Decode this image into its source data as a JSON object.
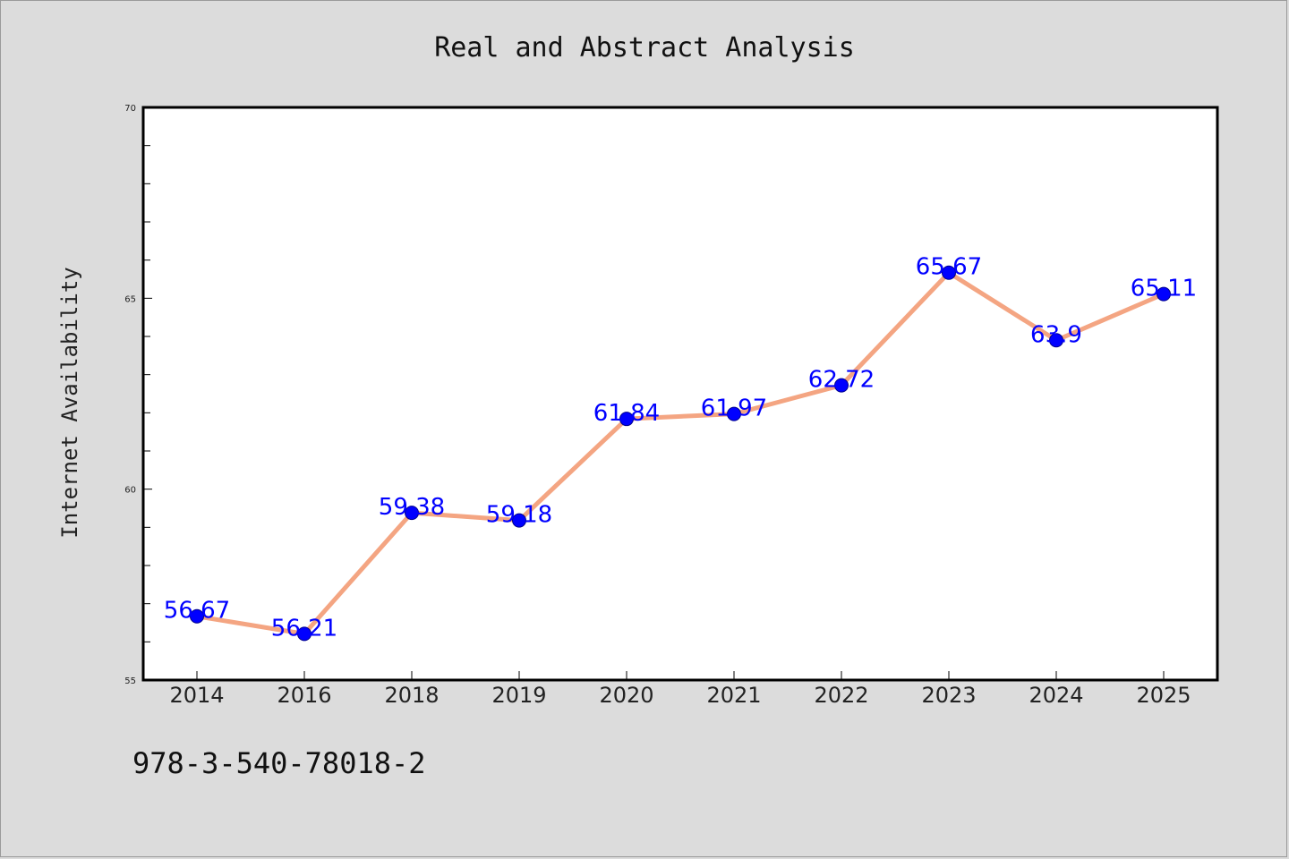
{
  "chart_data": {
    "type": "line",
    "title": "Real and Abstract Analysis",
    "xlabel": "",
    "ylabel": "Internet Availability",
    "categories": [
      "2014",
      "2016",
      "2018",
      "2019",
      "2020",
      "2021",
      "2022",
      "2023",
      "2024",
      "2025"
    ],
    "series": [
      {
        "values": [
          56.67,
          56.21,
          59.38,
          59.18,
          61.84,
          61.97,
          62.72,
          65.67,
          63.9,
          65.11
        ],
        "data_labels": [
          "56.67",
          "56.21",
          "59.38",
          "59.18",
          "61.84",
          "61.97",
          "62.72",
          "65.67",
          "63.9",
          "65.11"
        ],
        "line_color": "#f4a582",
        "marker_color": "#0000ff",
        "label_color": "#0000ff"
      }
    ],
    "ylim": [
      55,
      70
    ],
    "y_ticks": [
      "55",
      "60",
      "65",
      "70"
    ],
    "grid": false,
    "legend": "none"
  },
  "footnote": "978-3-540-78018-2",
  "colors": {
    "background": "#dcdcdc",
    "plot_background": "#ffffff",
    "axis": "#000000"
  }
}
